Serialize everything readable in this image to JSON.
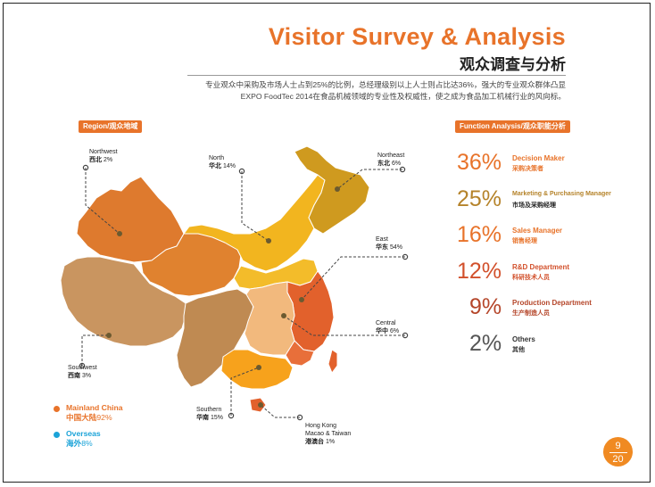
{
  "header": {
    "title_en": "Visitor Survey & Analysis",
    "title_cn": "观众调查与分析",
    "intro_line1": "专业观众中采购及市场人士占到25%的比例，总经理级别以上人士则占比达36%，强大的专业观众群体凸显",
    "intro_line2": "EXPO FoodTec 2014在食品机械领域的专业性及权威性，使之成为食品加工机械行业的风向标。"
  },
  "region": {
    "heading": "Region/观众地域",
    "labels": [
      {
        "id": "northwest",
        "en": "Northwest",
        "cn": "西北",
        "pct": "2%"
      },
      {
        "id": "north",
        "en": "North",
        "cn": "华北",
        "pct": "14%"
      },
      {
        "id": "northeast",
        "en": "Northeast",
        "cn": "东北",
        "pct": "6%"
      },
      {
        "id": "east",
        "en": "East",
        "cn": "华东",
        "pct": "54%"
      },
      {
        "id": "central",
        "en": "Central",
        "cn": "华中",
        "pct": "6%"
      },
      {
        "id": "southwest",
        "en": "Southwest",
        "cn": "西南",
        "pct": "3%"
      },
      {
        "id": "southern",
        "en": "Southern",
        "cn": "华南",
        "pct": "15%"
      },
      {
        "id": "hk",
        "en": "Hong Kong",
        "en2": "Macao & Taiwan",
        "cn": "港澳台",
        "pct": "1%"
      }
    ],
    "legend": {
      "mainland_en": "Mainland China",
      "mainland_cn": "中国大陆",
      "mainland_pct": "92%",
      "overseas_en": "Overseas",
      "overseas_cn": "海外",
      "overseas_pct": "8%"
    }
  },
  "function": {
    "heading": "Function Analysis/观众职能分析",
    "rows": [
      {
        "pct": "36%",
        "en": "Decision Maker",
        "cn": "采购决策者",
        "color": "#e8732a"
      },
      {
        "pct": "25%",
        "en": "Marketing & Purchasing Manager",
        "cn": "市场及采购经理",
        "color": "#b5832a"
      },
      {
        "pct": "16%",
        "en": "Sales Manager",
        "cn": "销售经理",
        "color": "#e8732a"
      },
      {
        "pct": "12%",
        "en": "R&D Department",
        "cn": "科研技术人员",
        "color": "#d2502b"
      },
      {
        "pct": "9%",
        "en": "Production Department",
        "cn": "生产制造人员",
        "color": "#b5462a"
      },
      {
        "pct": "2%",
        "en": "Others",
        "cn": "其他",
        "color": "#555555"
      }
    ]
  },
  "page": {
    "current": "9",
    "total": "20"
  },
  "colors": {
    "accent": "#e8732a",
    "overseas": "#1ba3d8",
    "northwest_fill": "#de7a2e",
    "southwest_fill": "#c99560",
    "north_fill": "#f2b51f",
    "northeast_fill": "#cf9a1f",
    "east_fill": "#e2612c",
    "central_fill": "#f2b97d",
    "southern_fill": "#f7a21c"
  }
}
